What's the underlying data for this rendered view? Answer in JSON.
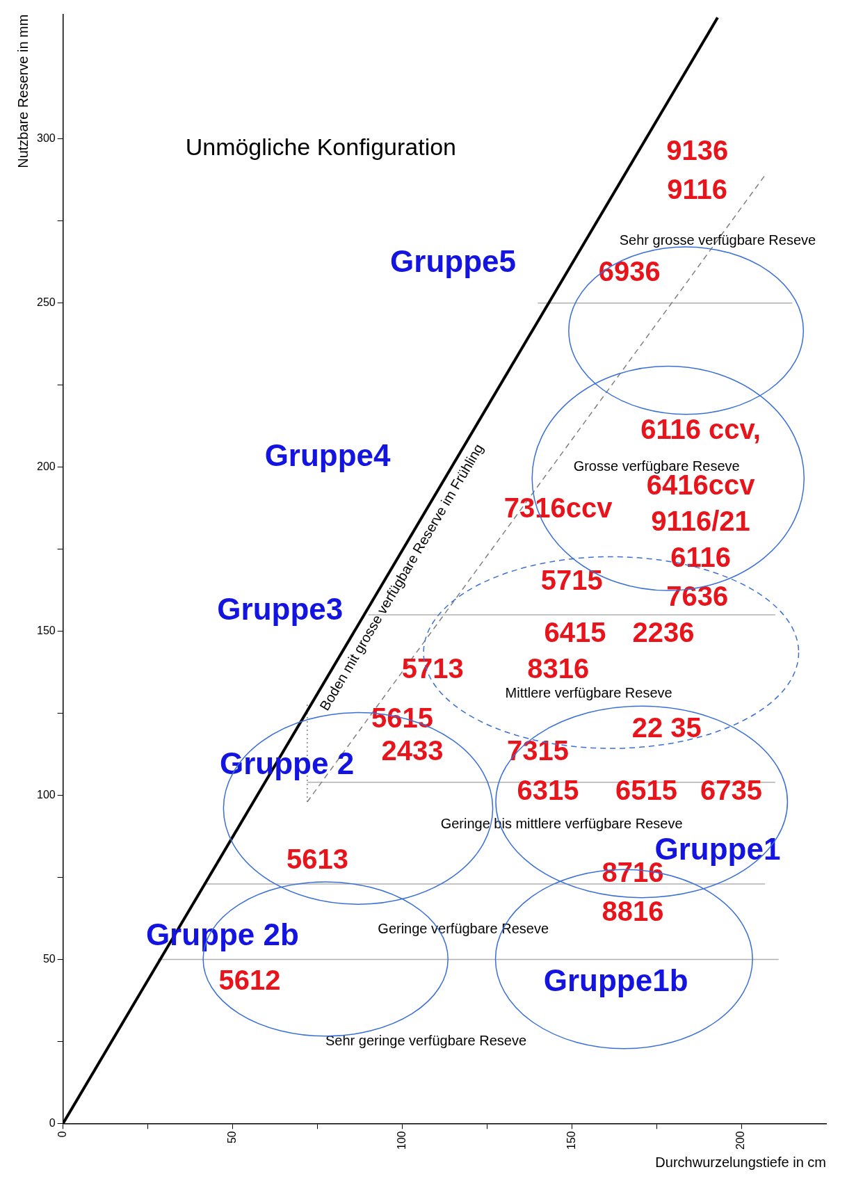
{
  "chart_data": {
    "type": "line",
    "xlabel": "Durchwurzelungstiefe in cm",
    "ylabel": "Nutzbare Reserve in mm",
    "xlim": [
      0,
      225
    ],
    "ylim": [
      0,
      338
    ],
    "xticks": [
      0,
      {
        "value": 25,
        "label": null
      },
      50,
      {
        "value": 75,
        "label": null
      },
      100,
      {
        "value": 125,
        "label": null
      },
      150,
      {
        "value": 175,
        "label": null
      },
      200
    ],
    "yticks": [
      0,
      {
        "value": 25,
        "label": null
      },
      50,
      {
        "value": 75,
        "label": null
      },
      100,
      {
        "value": 125,
        "label": null
      },
      150,
      {
        "value": 175,
        "label": null
      },
      200,
      {
        "value": 225,
        "label": null
      },
      250,
      {
        "value": 275,
        "label": null
      },
      300
    ],
    "grid": false,
    "legend": false,
    "marker": "none",
    "series": [
      {
        "name": "Boden mit grosse verfügbare Reserve im Frühling",
        "type": "line",
        "color": "#000000",
        "x": [
          0,
          193
        ],
        "values": [
          0,
          337
        ]
      },
      {
        "type": "line",
        "color": "#808080",
        "line_style": "dashed",
        "x": [
          72,
          207
        ],
        "values": [
          98,
          289
        ]
      },
      {
        "type": "line",
        "color": "#808080",
        "line_style": "dotted",
        "x": [
          72,
          72
        ],
        "values": [
          98,
          128
        ]
      },
      {
        "type": "line",
        "color": "#b0b0b0",
        "x": [
          140,
          215
        ],
        "values": [
          250,
          250
        ]
      },
      {
        "type": "line",
        "color": "#b0b0b0",
        "x": [
          90,
          210
        ],
        "values": [
          155,
          155
        ]
      },
      {
        "type": "line",
        "color": "#b0b0b0",
        "x": [
          72,
          210
        ],
        "values": [
          104,
          104
        ]
      },
      {
        "type": "line",
        "color": "#b0b0b0",
        "x": [
          42,
          207
        ],
        "values": [
          73,
          73
        ]
      },
      {
        "type": "line",
        "color": "#b0b0b0",
        "x": [
          28,
          211
        ],
        "values": [
          50,
          50
        ]
      }
    ],
    "annotations": [
      "Unmögliche Konfiguration",
      "Sehr grosse verfügbare Reseve",
      "Grosse verfügbare Reseve",
      "Mittlere verfügbare Reseve",
      "Geringe bis mittlere verfügbare Reseve",
      "Geringe verfügbare Reseve",
      "Sehr geringe verfügbare Reseve",
      "9136",
      "9116",
      "6936",
      "6116 ccv,",
      "6416ccv",
      "7316ccv",
      "9116/21",
      "6116",
      "5715",
      "7636",
      "6415",
      "2236",
      "5713",
      "8316",
      "5615",
      "22 35",
      "2433",
      "7315",
      "6315",
      "6515",
      "6735",
      "5613",
      "8716",
      "8816",
      "5612",
      "Gruppe5",
      "Gruppe4",
      "Gruppe3",
      "Gruppe 2",
      "Gruppe1",
      "Gruppe 2b",
      "Gruppe1b"
    ]
  }
}
